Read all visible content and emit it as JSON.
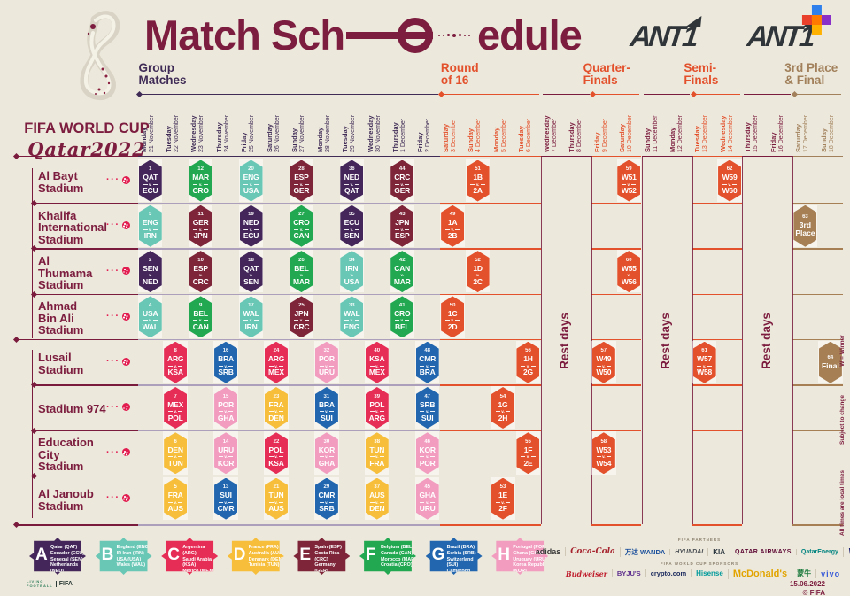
{
  "header": {
    "fifa_line1": "FIFA WORLD CUP",
    "fifa_line2": "Qatar2022",
    "title_left": "Match Sch",
    "title_right": "edule",
    "brand1": "ANT1",
    "brand2": "ANT1"
  },
  "sections": [
    {
      "id": "group",
      "lines": "Group\nMatches",
      "color": "#3F2B56",
      "col_start": 0,
      "col_end": 11
    },
    {
      "id": "r16",
      "lines": "Round\nof 16",
      "color": "#E3512C",
      "col_start": 12,
      "col_end": 15
    },
    {
      "id": "qf",
      "lines": "Quarter-\nFinals",
      "color": "#E3512C",
      "col_start": 18,
      "col_end": 19
    },
    {
      "id": "sf",
      "lines": "Semi-\nFinals",
      "color": "#E3512C",
      "col_start": 22,
      "col_end": 23
    },
    {
      "id": "final",
      "lines": "3rd Place\n& Final",
      "color": "#A1805B",
      "col_start": 26,
      "col_end": 27
    }
  ],
  "rest_label": "Rest days",
  "columns": [
    {
      "day": "Monday",
      "date": "21 November",
      "type": "group"
    },
    {
      "day": "Tuesday",
      "date": "22 November",
      "type": "group"
    },
    {
      "day": "Wednesday",
      "date": "23 November",
      "type": "group"
    },
    {
      "day": "Thursday",
      "date": "24 November",
      "type": "group"
    },
    {
      "day": "Friday",
      "date": "25 November",
      "type": "group"
    },
    {
      "day": "Saturday",
      "date": "26 November",
      "type": "group"
    },
    {
      "day": "Sunday",
      "date": "27 November",
      "type": "group"
    },
    {
      "day": "Monday",
      "date": "28 November",
      "type": "group"
    },
    {
      "day": "Tuesday",
      "date": "29 November",
      "type": "group"
    },
    {
      "day": "Wednesday",
      "date": "30 November",
      "type": "group"
    },
    {
      "day": "Thursday",
      "date": "1 December",
      "type": "group"
    },
    {
      "day": "Friday",
      "date": "2 December",
      "type": "group"
    },
    {
      "day": "Saturday",
      "date": "3 December",
      "type": "r16"
    },
    {
      "day": "Sunday",
      "date": "4 December",
      "type": "r16"
    },
    {
      "day": "Monday",
      "date": "5 December",
      "type": "r16"
    },
    {
      "day": "Tuesday",
      "date": "6 December",
      "type": "r16"
    },
    {
      "day": "Wednesday",
      "date": "7 December",
      "type": "rest"
    },
    {
      "day": "Thursday",
      "date": "8 December",
      "type": "rest"
    },
    {
      "day": "Friday",
      "date": "9 December",
      "type": "qf"
    },
    {
      "day": "Saturday",
      "date": "10 December",
      "type": "qf"
    },
    {
      "day": "Sunday",
      "date": "11 December",
      "type": "rest"
    },
    {
      "day": "Monday",
      "date": "12 December",
      "type": "rest"
    },
    {
      "day": "Tuesday",
      "date": "13 December",
      "type": "sf"
    },
    {
      "day": "Wednesday",
      "date": "14 December",
      "type": "sf"
    },
    {
      "day": "Thursday",
      "date": "15 December",
      "type": "rest"
    },
    {
      "day": "Friday",
      "date": "16 December",
      "type": "rest"
    },
    {
      "day": "Saturday",
      "date": "17 December",
      "type": "final"
    },
    {
      "day": "Sunday",
      "date": "18 December",
      "type": "final"
    }
  ],
  "column_colors": {
    "group": "#3F2B56",
    "r16": "#E3512C",
    "rest": "#7A1B3D",
    "qf": "#E3512C",
    "sf": "#E3512C",
    "final": "#A1805B"
  },
  "stadiums": [
    {
      "lines": "Al Bayt\nStadium"
    },
    {
      "lines": "Khalifa\nInternational\nStadium"
    },
    {
      "lines": "Al\nThumama\nStadium"
    },
    {
      "lines": "Ahmad\nBin Ali\nStadium"
    },
    {
      "lines": "Lusail\nStadium"
    },
    {
      "lines": "Stadium 974"
    },
    {
      "lines": "Education\nCity\nStadium"
    },
    {
      "lines": "Al Janoub\nStadium"
    }
  ],
  "vs_label": "v.",
  "group_colors": {
    "A": "#44265B",
    "B": "#69C7B6",
    "C": "#E62D55",
    "D": "#F6BE3B",
    "E": "#7E2539",
    "F": "#22A851",
    "G": "#2166AE",
    "H": "#F29CBF",
    "KO": "#E3512C",
    "FINAL": "#A67F55"
  },
  "matches": [
    {
      "n": 1,
      "r": 0,
      "c": 0,
      "a": "QAT",
      "b": "ECU",
      "g": "A"
    },
    {
      "n": 12,
      "r": 0,
      "c": 2,
      "a": "MAR",
      "b": "CRO",
      "g": "F"
    },
    {
      "n": 20,
      "r": 0,
      "c": 4,
      "a": "ENG",
      "b": "USA",
      "g": "B"
    },
    {
      "n": 28,
      "r": 0,
      "c": 6,
      "a": "ESP",
      "b": "GER",
      "g": "E"
    },
    {
      "n": 36,
      "r": 0,
      "c": 8,
      "a": "NED",
      "b": "QAT",
      "g": "A"
    },
    {
      "n": 44,
      "r": 0,
      "c": 10,
      "a": "CRC",
      "b": "GER",
      "g": "E"
    },
    {
      "n": 51,
      "r": 0,
      "c": 13,
      "a": "1B",
      "b": "2A",
      "g": "KO"
    },
    {
      "n": 59,
      "r": 0,
      "c": 19,
      "a": "W51",
      "b": "W52",
      "g": "KO"
    },
    {
      "n": 62,
      "r": 0,
      "c": 23,
      "a": "W59",
      "b": "W60",
      "g": "KO"
    },
    {
      "n": 3,
      "r": 1,
      "c": 0,
      "a": "ENG",
      "b": "IRN",
      "g": "B"
    },
    {
      "n": 11,
      "r": 1,
      "c": 2,
      "a": "GER",
      "b": "JPN",
      "g": "E"
    },
    {
      "n": 19,
      "r": 1,
      "c": 4,
      "a": "NED",
      "b": "ECU",
      "g": "A"
    },
    {
      "n": 27,
      "r": 1,
      "c": 6,
      "a": "CRO",
      "b": "CAN",
      "g": "F"
    },
    {
      "n": 35,
      "r": 1,
      "c": 8,
      "a": "ECU",
      "b": "SEN",
      "g": "A"
    },
    {
      "n": 43,
      "r": 1,
      "c": 10,
      "a": "JPN",
      "b": "ESP",
      "g": "E"
    },
    {
      "n": 49,
      "r": 1,
      "c": 12,
      "a": "1A",
      "b": "2B",
      "g": "KO"
    },
    {
      "n": 63,
      "r": 1,
      "c": 26,
      "lines": "3rd\nPlace",
      "g": "FINAL"
    },
    {
      "n": 2,
      "r": 2,
      "c": 0,
      "a": "SEN",
      "b": "NED",
      "g": "A"
    },
    {
      "n": 10,
      "r": 2,
      "c": 2,
      "a": "ESP",
      "b": "CRC",
      "g": "E"
    },
    {
      "n": 18,
      "r": 2,
      "c": 4,
      "a": "QAT",
      "b": "SEN",
      "g": "A"
    },
    {
      "n": 26,
      "r": 2,
      "c": 6,
      "a": "BEL",
      "b": "MAR",
      "g": "F"
    },
    {
      "n": 34,
      "r": 2,
      "c": 8,
      "a": "IRN",
      "b": "USA",
      "g": "B"
    },
    {
      "n": 42,
      "r": 2,
      "c": 10,
      "a": "CAN",
      "b": "MAR",
      "g": "F"
    },
    {
      "n": 52,
      "r": 2,
      "c": 13,
      "a": "1D",
      "b": "2C",
      "g": "KO"
    },
    {
      "n": 60,
      "r": 2,
      "c": 19,
      "a": "W55",
      "b": "W56",
      "g": "KO"
    },
    {
      "n": 4,
      "r": 3,
      "c": 0,
      "a": "USA",
      "b": "WAL",
      "g": "B"
    },
    {
      "n": 9,
      "r": 3,
      "c": 2,
      "a": "BEL",
      "b": "CAN",
      "g": "F"
    },
    {
      "n": 17,
      "r": 3,
      "c": 4,
      "a": "WAL",
      "b": "IRN",
      "g": "B"
    },
    {
      "n": 25,
      "r": 3,
      "c": 6,
      "a": "JPN",
      "b": "CRC",
      "g": "E"
    },
    {
      "n": 33,
      "r": 3,
      "c": 8,
      "a": "WAL",
      "b": "ENG",
      "g": "B"
    },
    {
      "n": 41,
      "r": 3,
      "c": 10,
      "a": "CRO",
      "b": "BEL",
      "g": "F"
    },
    {
      "n": 50,
      "r": 3,
      "c": 12,
      "a": "1C",
      "b": "2D",
      "g": "KO"
    },
    {
      "n": 8,
      "r": 4,
      "c": 1,
      "a": "ARG",
      "b": "KSA",
      "g": "C"
    },
    {
      "n": 16,
      "r": 4,
      "c": 3,
      "a": "BRA",
      "b": "SRB",
      "g": "G"
    },
    {
      "n": 24,
      "r": 4,
      "c": 5,
      "a": "ARG",
      "b": "MEX",
      "g": "C"
    },
    {
      "n": 32,
      "r": 4,
      "c": 7,
      "a": "POR",
      "b": "URU",
      "g": "H"
    },
    {
      "n": 40,
      "r": 4,
      "c": 9,
      "a": "KSA",
      "b": "MEX",
      "g": "C"
    },
    {
      "n": 48,
      "r": 4,
      "c": 11,
      "a": "CMR",
      "b": "BRA",
      "g": "G"
    },
    {
      "n": 56,
      "r": 4,
      "c": 15,
      "a": "1H",
      "b": "2G",
      "g": "KO"
    },
    {
      "n": 57,
      "r": 4,
      "c": 18,
      "a": "W49",
      "b": "W50",
      "g": "KO"
    },
    {
      "n": 61,
      "r": 4,
      "c": 22,
      "a": "W57",
      "b": "W58",
      "g": "KO"
    },
    {
      "n": 64,
      "r": 4,
      "c": 27,
      "lines": "Final",
      "g": "FINAL"
    },
    {
      "n": 7,
      "r": 5,
      "c": 1,
      "a": "MEX",
      "b": "POL",
      "g": "C"
    },
    {
      "n": 15,
      "r": 5,
      "c": 3,
      "a": "POR",
      "b": "GHA",
      "g": "H"
    },
    {
      "n": 23,
      "r": 5,
      "c": 5,
      "a": "FRA",
      "b": "DEN",
      "g": "D"
    },
    {
      "n": 31,
      "r": 5,
      "c": 7,
      "a": "BRA",
      "b": "SUI",
      "g": "G"
    },
    {
      "n": 39,
      "r": 5,
      "c": 9,
      "a": "POL",
      "b": "ARG",
      "g": "C"
    },
    {
      "n": 47,
      "r": 5,
      "c": 11,
      "a": "SRB",
      "b": "SUI",
      "g": "G"
    },
    {
      "n": 54,
      "r": 5,
      "c": 14,
      "a": "1G",
      "b": "2H",
      "g": "KO"
    },
    {
      "n": 6,
      "r": 6,
      "c": 1,
      "a": "DEN",
      "b": "TUN",
      "g": "D"
    },
    {
      "n": 14,
      "r": 6,
      "c": 3,
      "a": "URU",
      "b": "KOR",
      "g": "H"
    },
    {
      "n": 22,
      "r": 6,
      "c": 5,
      "a": "POL",
      "b": "KSA",
      "g": "C"
    },
    {
      "n": 30,
      "r": 6,
      "c": 7,
      "a": "KOR",
      "b": "GHA",
      "g": "H"
    },
    {
      "n": 38,
      "r": 6,
      "c": 9,
      "a": "TUN",
      "b": "FRA",
      "g": "D"
    },
    {
      "n": 46,
      "r": 6,
      "c": 11,
      "a": "KOR",
      "b": "POR",
      "g": "H"
    },
    {
      "n": 55,
      "r": 6,
      "c": 15,
      "a": "1F",
      "b": "2E",
      "g": "KO"
    },
    {
      "n": 58,
      "r": 6,
      "c": 18,
      "a": "W53",
      "b": "W54",
      "g": "KO"
    },
    {
      "n": 5,
      "r": 7,
      "c": 1,
      "a": "FRA",
      "b": "AUS",
      "g": "D"
    },
    {
      "n": 13,
      "r": 7,
      "c": 3,
      "a": "SUI",
      "b": "CMR",
      "g": "G"
    },
    {
      "n": 21,
      "r": 7,
      "c": 5,
      "a": "TUN",
      "b": "AUS",
      "g": "D"
    },
    {
      "n": 29,
      "r": 7,
      "c": 7,
      "a": "CMR",
      "b": "SRB",
      "g": "G"
    },
    {
      "n": 37,
      "r": 7,
      "c": 9,
      "a": "AUS",
      "b": "DEN",
      "g": "D"
    },
    {
      "n": 45,
      "r": 7,
      "c": 11,
      "a": "GHA",
      "b": "URU",
      "g": "H"
    },
    {
      "n": 53,
      "r": 7,
      "c": 14,
      "a": "1E",
      "b": "2F",
      "g": "KO"
    }
  ],
  "legend_groups": [
    {
      "letter": "A",
      "color": "#44265B",
      "teams": "Qatar (QAT)\nEcuador (ECU)\nSenegal (SEN)\nNetherlands (NED)"
    },
    {
      "letter": "B",
      "color": "#69C7B6",
      "teams": "England (ENG)\nIR Iran (IRN)\nUSA (USA)\nWales (WAL)"
    },
    {
      "letter": "C",
      "color": "#E62D55",
      "teams": "Argentina (ARG)\nSaudi Arabia (KSA)\nMexico (MEX)\nPoland (POL)"
    },
    {
      "letter": "D",
      "color": "#F6BE3B",
      "teams": "France (FRA)\nAustralia (AUS)\nDenmark (DEN)\nTunisia (TUN)"
    },
    {
      "letter": "E",
      "color": "#7E2539",
      "teams": "Spain (ESP)\nCosta Rica (CRC)\nGermany (GER)\nJapan (JPN)"
    },
    {
      "letter": "F",
      "color": "#22A851",
      "teams": "Belgium (BEL)\nCanada (CAN)\nMorocco (MAR)\nCroatia (CRO)"
    },
    {
      "letter": "G",
      "color": "#2166AE",
      "teams": "Brazil (BRA)\nSerbia (SRB)\nSwitzerland (SUI)\nCameroon (CMR)"
    },
    {
      "letter": "H",
      "color": "#F29CBF",
      "teams": "Portugal (POR)\nGhana (GHA)\nUruguay (URU)\nKorea Republic (KOR)"
    }
  ],
  "partners_label": "FIFA PARTNERS",
  "partners": [
    "adidas",
    "Coca-Cola",
    "万达 WANDA",
    "HYUNDAI",
    "KIA",
    "QATAR AIRWAYS",
    "QatarEnergy",
    "VISA"
  ],
  "sponsors_label": "FIFA WORLD CUP SPONSORS",
  "sponsors": [
    "Budweiser",
    "BYJU'S",
    "crypto.com",
    "Hisense",
    "McDonald's",
    "蒙牛",
    "vivo"
  ],
  "notes": {
    "winner": "W = Winner",
    "subject": "Subject to change",
    "local": "All times are local times"
  },
  "mini_logo": {
    "line1": "LIVING",
    "line2": "FOOTBALL",
    "fifa": "FIFA"
  },
  "footer": {
    "date": "15.06.2022",
    "copyright": "© FIFA"
  }
}
